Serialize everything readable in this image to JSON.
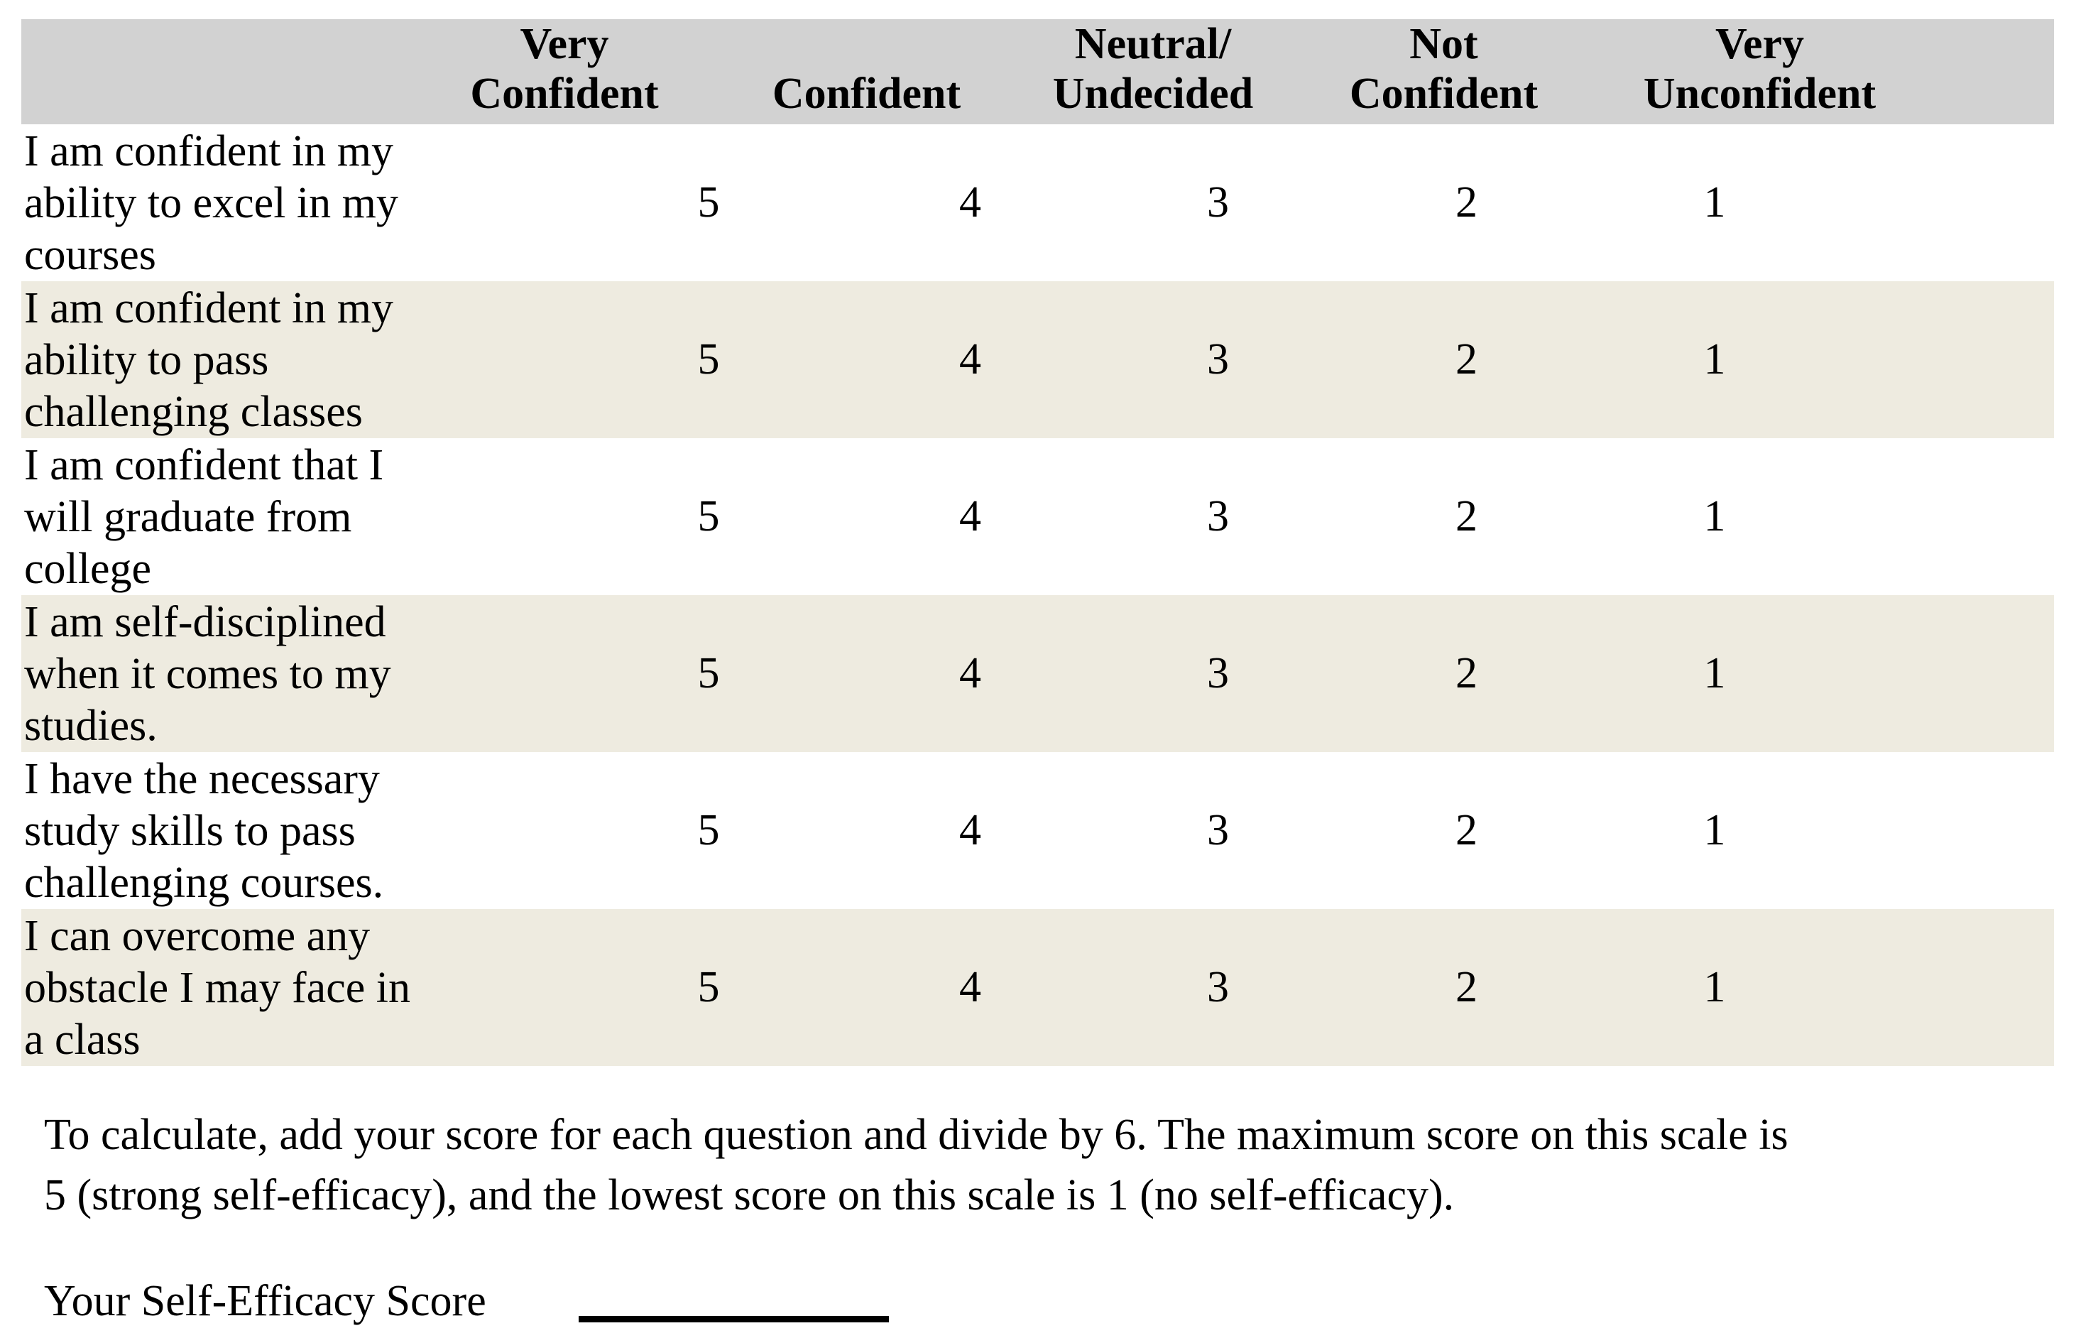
{
  "table": {
    "columns": [
      "Very\nConfident",
      "Confident",
      "Neutral/\nUndecided",
      "Not\nConfident",
      "Very\nUnconfident"
    ],
    "rows": [
      {
        "question": "I am confident in my\nability to excel in my\ncourses",
        "ratings": [
          "5",
          "4",
          "3",
          "2",
          "1"
        ]
      },
      {
        "question": "I am confident in my\nability to pass\nchallenging classes",
        "ratings": [
          "5",
          "4",
          "3",
          "2",
          "1"
        ]
      },
      {
        "question": "I am confident that I\nwill graduate from\ncollege",
        "ratings": [
          "5",
          "4",
          "3",
          "2",
          "1"
        ]
      },
      {
        "question": "I am self-disciplined\nwhen it comes to my\nstudies.",
        "ratings": [
          "5",
          "4",
          "3",
          "2",
          "1"
        ]
      },
      {
        "question": "I have the necessary\nstudy skills to pass\nchallenging courses.",
        "ratings": [
          "5",
          "4",
          "3",
          "2",
          "1"
        ]
      },
      {
        "question": "I can overcome any\nobstacle I may face in\na class",
        "ratings": [
          "5",
          "4",
          "3",
          "2",
          "1"
        ]
      }
    ]
  },
  "note": "To calculate, add your score for each question and divide by 6. The maximum score on this scale is\n5 (strong self-efficacy), and the lowest score on this scale is 1 (no self-efficacy).",
  "score": {
    "label": "Your Self-Efficacy Score"
  },
  "colors": {
    "header_bg": "#d2d2d2",
    "row_alt_bg": "#eeebe0",
    "text": "#000000"
  }
}
